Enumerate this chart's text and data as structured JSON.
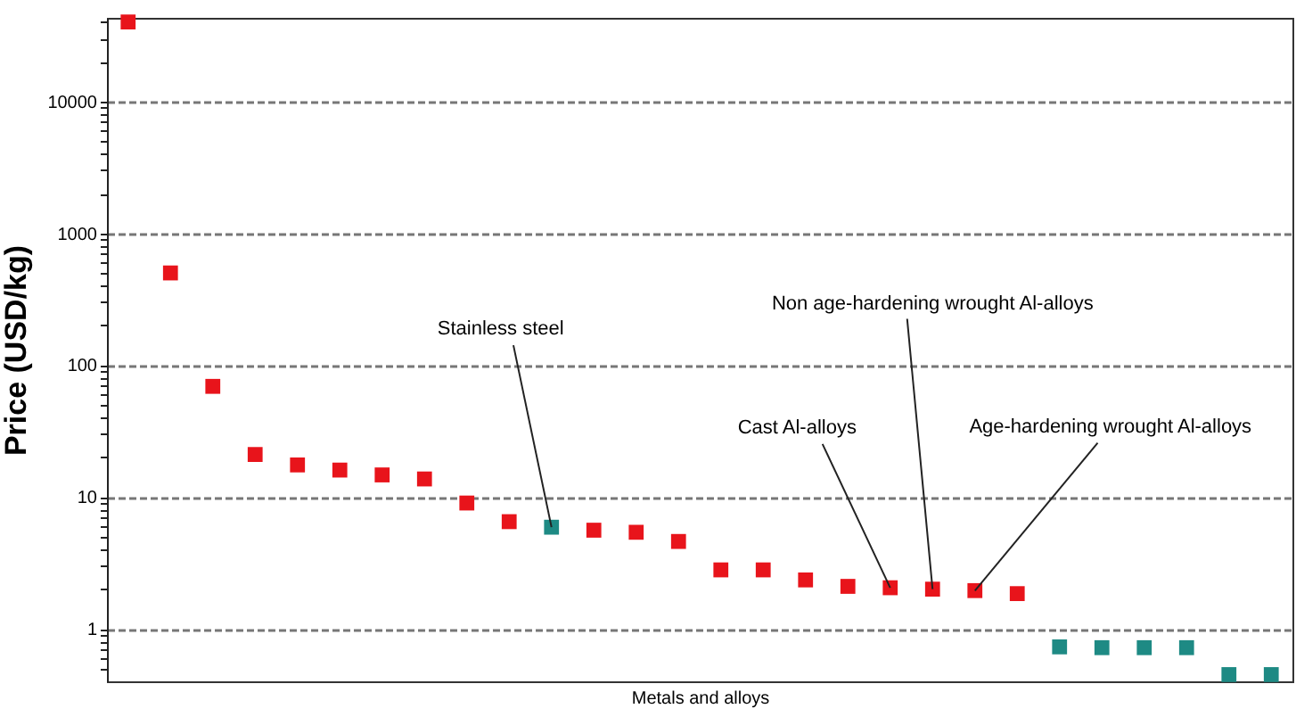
{
  "chart_data": {
    "type": "scatter",
    "ylabel": "Price (USD/kg)",
    "xlabel": "Metals and alloys",
    "categories": [
      null,
      null,
      null,
      null,
      null,
      null,
      null,
      null,
      null,
      null,
      null,
      null,
      null,
      null,
      null,
      null,
      null,
      null,
      null,
      null,
      null,
      null,
      null,
      null,
      null,
      null,
      null,
      null
    ],
    "values": [
      40000,
      500,
      69,
      21,
      17.5,
      16,
      14.7,
      13.7,
      9,
      6.5,
      5.9,
      5.6,
      5.4,
      4.6,
      2.8,
      2.8,
      2.35,
      2.1,
      2.05,
      2.0,
      1.95,
      1.85,
      0.73,
      0.72,
      0.72,
      0.72,
      0.45,
      0.45
    ],
    "colors": [
      "#e8141b",
      "#e8141b",
      "#e8141b",
      "#e8141b",
      "#e8141b",
      "#e8141b",
      "#e8141b",
      "#e8141b",
      "#e8141b",
      "#e8141b",
      "#1e8a84",
      "#e8141b",
      "#e8141b",
      "#e8141b",
      "#e8141b",
      "#e8141b",
      "#e8141b",
      "#e8141b",
      "#e8141b",
      "#e8141b",
      "#e8141b",
      "#e8141b",
      "#1e8a84",
      "#1e8a84",
      "#1e8a84",
      "#1e8a84",
      "#1e8a84",
      "#1e8a84"
    ],
    "marker": "square",
    "log": "y",
    "grid": "y",
    "ylim": [
      0.4,
      43000
    ],
    "yticks": [
      {
        "value": 0.5,
        "label": null
      },
      {
        "value": 0.6,
        "label": null
      },
      {
        "value": 0.7,
        "label": null
      },
      {
        "value": 0.8,
        "label": null
      },
      {
        "value": 0.9,
        "label": null
      },
      1,
      {
        "value": 2,
        "label": null
      },
      {
        "value": 3,
        "label": null
      },
      {
        "value": 4,
        "label": null
      },
      {
        "value": 5,
        "label": null
      },
      {
        "value": 6,
        "label": null
      },
      {
        "value": 7,
        "label": null
      },
      {
        "value": 8,
        "label": null
      },
      {
        "value": 9,
        "label": null
      },
      10,
      {
        "value": 20,
        "label": null
      },
      {
        "value": 30,
        "label": null
      },
      {
        "value": 40,
        "label": null
      },
      {
        "value": 50,
        "label": null
      },
      {
        "value": 60,
        "label": null
      },
      {
        "value": 70,
        "label": null
      },
      {
        "value": 80,
        "label": null
      },
      {
        "value": 90,
        "label": null
      },
      100,
      {
        "value": 200,
        "label": null
      },
      {
        "value": 300,
        "label": null
      },
      {
        "value": 400,
        "label": null
      },
      {
        "value": 500,
        "label": null
      },
      {
        "value": 600,
        "label": null
      },
      {
        "value": 700,
        "label": null
      },
      {
        "value": 800,
        "label": null
      },
      {
        "value": 900,
        "label": null
      },
      1000,
      {
        "value": 2000,
        "label": null
      },
      {
        "value": 3000,
        "label": null
      },
      {
        "value": 4000,
        "label": null
      },
      {
        "value": 5000,
        "label": null
      },
      {
        "value": 6000,
        "label": null
      },
      {
        "value": 7000,
        "label": null
      },
      {
        "value": 8000,
        "label": null
      },
      {
        "value": 9000,
        "label": null
      },
      10000,
      {
        "value": 20000,
        "label": null
      },
      {
        "value": 30000,
        "label": null
      },
      {
        "value": 40000,
        "label": null
      }
    ],
    "annotations": [
      "Stainless steel",
      "Cast Al-alloys",
      "Non age-hardening wrought Al-alloys",
      "Age-hardening wrought Al-alloys"
    ]
  }
}
